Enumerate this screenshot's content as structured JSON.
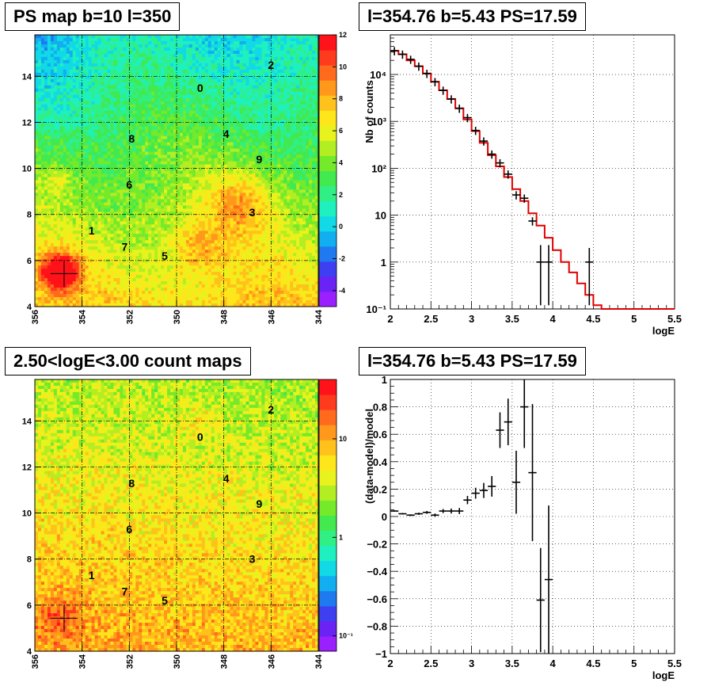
{
  "chart_data": [
    {
      "type": "heatmap",
      "title": "PS map b=10 l=350",
      "xlim": [
        356,
        344
      ],
      "ylim": [
        4,
        15.8
      ],
      "x_ticks": [
        "356",
        "354",
        "352",
        "350",
        "348",
        "346",
        "344"
      ],
      "y_ticks": [
        "4",
        "6",
        "8",
        "10",
        "12",
        "14"
      ],
      "colorbar_ticks": [
        "-4",
        "-2",
        "0",
        "2",
        "4",
        "6",
        "8",
        "10",
        "12"
      ],
      "colorbar_range": [
        -5,
        12
      ],
      "marker": {
        "l": 354.76,
        "b": 5.43
      },
      "source_labels": [
        {
          "label": "0",
          "l": 349.0,
          "b": 13.5
        },
        {
          "label": "1",
          "l": 353.6,
          "b": 7.3
        },
        {
          "label": "2",
          "l": 346.0,
          "b": 14.5
        },
        {
          "label": "3",
          "l": 346.8,
          "b": 8.1
        },
        {
          "label": "4",
          "l": 347.9,
          "b": 11.5
        },
        {
          "label": "5",
          "l": 350.5,
          "b": 6.2
        },
        {
          "label": "6",
          "l": 352.0,
          "b": 9.3
        },
        {
          "label": "7",
          "l": 352.2,
          "b": 6.6
        },
        {
          "label": "8",
          "l": 351.9,
          "b": 11.3
        },
        {
          "label": "9",
          "l": 346.5,
          "b": 10.4
        }
      ]
    },
    {
      "type": "line",
      "title": "l=354.76 b=5.43 PS=17.59",
      "xlabel": "logE",
      "ylabel": "Nb of counts",
      "xlim": [
        2,
        5.5
      ],
      "ylim_log": [
        0.1,
        70000
      ],
      "x_ticks": [
        "2",
        "2.5",
        "3",
        "3.5",
        "4",
        "4.5",
        "5",
        "5.5"
      ],
      "y_ticks": [
        "10⁻¹",
        "1",
        "10",
        "10²",
        "10³",
        "10⁴"
      ],
      "model_bins": [
        [
          2.0,
          2.1,
          32000
        ],
        [
          2.1,
          2.2,
          27000
        ],
        [
          2.2,
          2.3,
          20000
        ],
        [
          2.3,
          2.4,
          15000
        ],
        [
          2.4,
          2.5,
          10500
        ],
        [
          2.5,
          2.6,
          7000
        ],
        [
          2.6,
          2.7,
          4600
        ],
        [
          2.7,
          2.8,
          3000
        ],
        [
          2.8,
          2.9,
          1900
        ],
        [
          2.9,
          3.0,
          1100
        ],
        [
          3.0,
          3.1,
          620
        ],
        [
          3.1,
          3.2,
          350
        ],
        [
          3.2,
          3.3,
          190
        ],
        [
          3.3,
          3.4,
          110
        ],
        [
          3.4,
          3.5,
          65
        ],
        [
          3.5,
          3.6,
          36
        ],
        [
          3.6,
          3.7,
          20
        ],
        [
          3.7,
          3.8,
          11
        ],
        [
          3.8,
          3.9,
          6
        ],
        [
          3.9,
          4.0,
          3.3
        ],
        [
          4.0,
          4.1,
          1.8
        ],
        [
          4.1,
          4.2,
          1.0
        ],
        [
          4.2,
          4.3,
          0.6
        ],
        [
          4.3,
          4.4,
          0.35
        ],
        [
          4.4,
          4.5,
          0.2
        ],
        [
          4.5,
          4.6,
          0.12
        ],
        [
          4.6,
          5.5,
          0.1
        ]
      ],
      "data_points": [
        {
          "x": 2.05,
          "y": 32000
        },
        {
          "x": 2.15,
          "y": 27000
        },
        {
          "x": 2.25,
          "y": 21000
        },
        {
          "x": 2.35,
          "y": 15000
        },
        {
          "x": 2.45,
          "y": 10500
        },
        {
          "x": 2.55,
          "y": 7000
        },
        {
          "x": 2.65,
          "y": 4600
        },
        {
          "x": 2.75,
          "y": 3000
        },
        {
          "x": 2.85,
          "y": 1900
        },
        {
          "x": 2.95,
          "y": 1200
        },
        {
          "x": 3.05,
          "y": 640
        },
        {
          "x": 3.15,
          "y": 380
        },
        {
          "x": 3.25,
          "y": 200
        },
        {
          "x": 3.35,
          "y": 130
        },
        {
          "x": 3.45,
          "y": 75
        },
        {
          "x": 3.55,
          "y": 27
        },
        {
          "x": 3.65,
          "y": 23
        },
        {
          "x": 3.75,
          "y": 7.5
        },
        {
          "x": 3.85,
          "y": 1.0,
          "err_lo": 0.12,
          "err_hi": 2.3
        },
        {
          "x": 3.95,
          "y": 1.0,
          "err_lo": 0.12,
          "err_hi": 2.3
        },
        {
          "x": 4.45,
          "y": 1.0,
          "err_lo": 0.12,
          "err_hi": 2.0
        }
      ]
    },
    {
      "type": "heatmap",
      "title": "2.50<logE<3.00 count maps",
      "xlim": [
        356,
        344
      ],
      "ylim": [
        4,
        15.8
      ],
      "x_ticks": [
        "356",
        "354",
        "352",
        "350",
        "348",
        "346",
        "344"
      ],
      "y_ticks": [
        "4",
        "6",
        "8",
        "10",
        "12",
        "14"
      ],
      "colorbar_ticks": [
        "10⁻¹",
        "1",
        "10"
      ],
      "colorbar_log_range": [
        0.07,
        40
      ],
      "marker": {
        "l": 354.76,
        "b": 5.43
      },
      "source_labels": [
        {
          "label": "0",
          "l": 349.0,
          "b": 13.3
        },
        {
          "label": "1",
          "l": 353.6,
          "b": 7.3
        },
        {
          "label": "2",
          "l": 346.0,
          "b": 14.5
        },
        {
          "label": "3",
          "l": 346.8,
          "b": 8.0
        },
        {
          "label": "4",
          "l": 347.9,
          "b": 11.5
        },
        {
          "label": "5",
          "l": 350.5,
          "b": 6.2
        },
        {
          "label": "6",
          "l": 352.0,
          "b": 9.3
        },
        {
          "label": "7",
          "l": 352.2,
          "b": 6.6
        },
        {
          "label": "8",
          "l": 351.9,
          "b": 11.3
        },
        {
          "label": "9",
          "l": 346.5,
          "b": 10.4
        }
      ]
    },
    {
      "type": "scatter",
      "title": "l=354.76 b=5.43 PS=17.59",
      "xlabel": "logE",
      "ylabel": "(data-model)/model",
      "xlim": [
        2,
        5.5
      ],
      "ylim": [
        -1,
        1
      ],
      "x_ticks": [
        "2",
        "2.5",
        "3",
        "3.5",
        "4",
        "4.5",
        "5",
        "5.5"
      ],
      "y_ticks": [
        "−1",
        "−0.8",
        "−0.6",
        "−0.4",
        "−0.2",
        "0",
        "0.2",
        "0.4",
        "0.6",
        "0.8",
        "1"
      ],
      "data_points": [
        {
          "x": 2.05,
          "y": 0.04,
          "err": 0.005
        },
        {
          "x": 2.15,
          "y": 0.02,
          "err": 0.005
        },
        {
          "x": 2.25,
          "y": 0.01,
          "err": 0.006
        },
        {
          "x": 2.35,
          "y": 0.02,
          "err": 0.008
        },
        {
          "x": 2.45,
          "y": 0.03,
          "err": 0.01
        },
        {
          "x": 2.55,
          "y": 0.01,
          "err": 0.012
        },
        {
          "x": 2.65,
          "y": 0.04,
          "err": 0.015
        },
        {
          "x": 2.75,
          "y": 0.04,
          "err": 0.018
        },
        {
          "x": 2.85,
          "y": 0.04,
          "err": 0.022
        },
        {
          "x": 2.95,
          "y": 0.12,
          "err": 0.03
        },
        {
          "x": 3.05,
          "y": 0.17,
          "err": 0.04
        },
        {
          "x": 3.15,
          "y": 0.19,
          "err": 0.055
        },
        {
          "x": 3.25,
          "y": 0.22,
          "err": 0.075
        },
        {
          "x": 3.35,
          "y": 0.63,
          "err": 0.13
        },
        {
          "x": 3.45,
          "y": 0.69,
          "err": 0.17
        },
        {
          "x": 3.55,
          "y": 0.25,
          "err": 0.23
        },
        {
          "x": 3.65,
          "y": 0.8,
          "err": 0.3
        },
        {
          "x": 3.75,
          "y": 0.32,
          "err": 0.5
        },
        {
          "x": 3.85,
          "y": -0.61,
          "err": 0.38
        },
        {
          "x": 3.95,
          "y": -0.46,
          "err": 0.54
        }
      ]
    }
  ]
}
